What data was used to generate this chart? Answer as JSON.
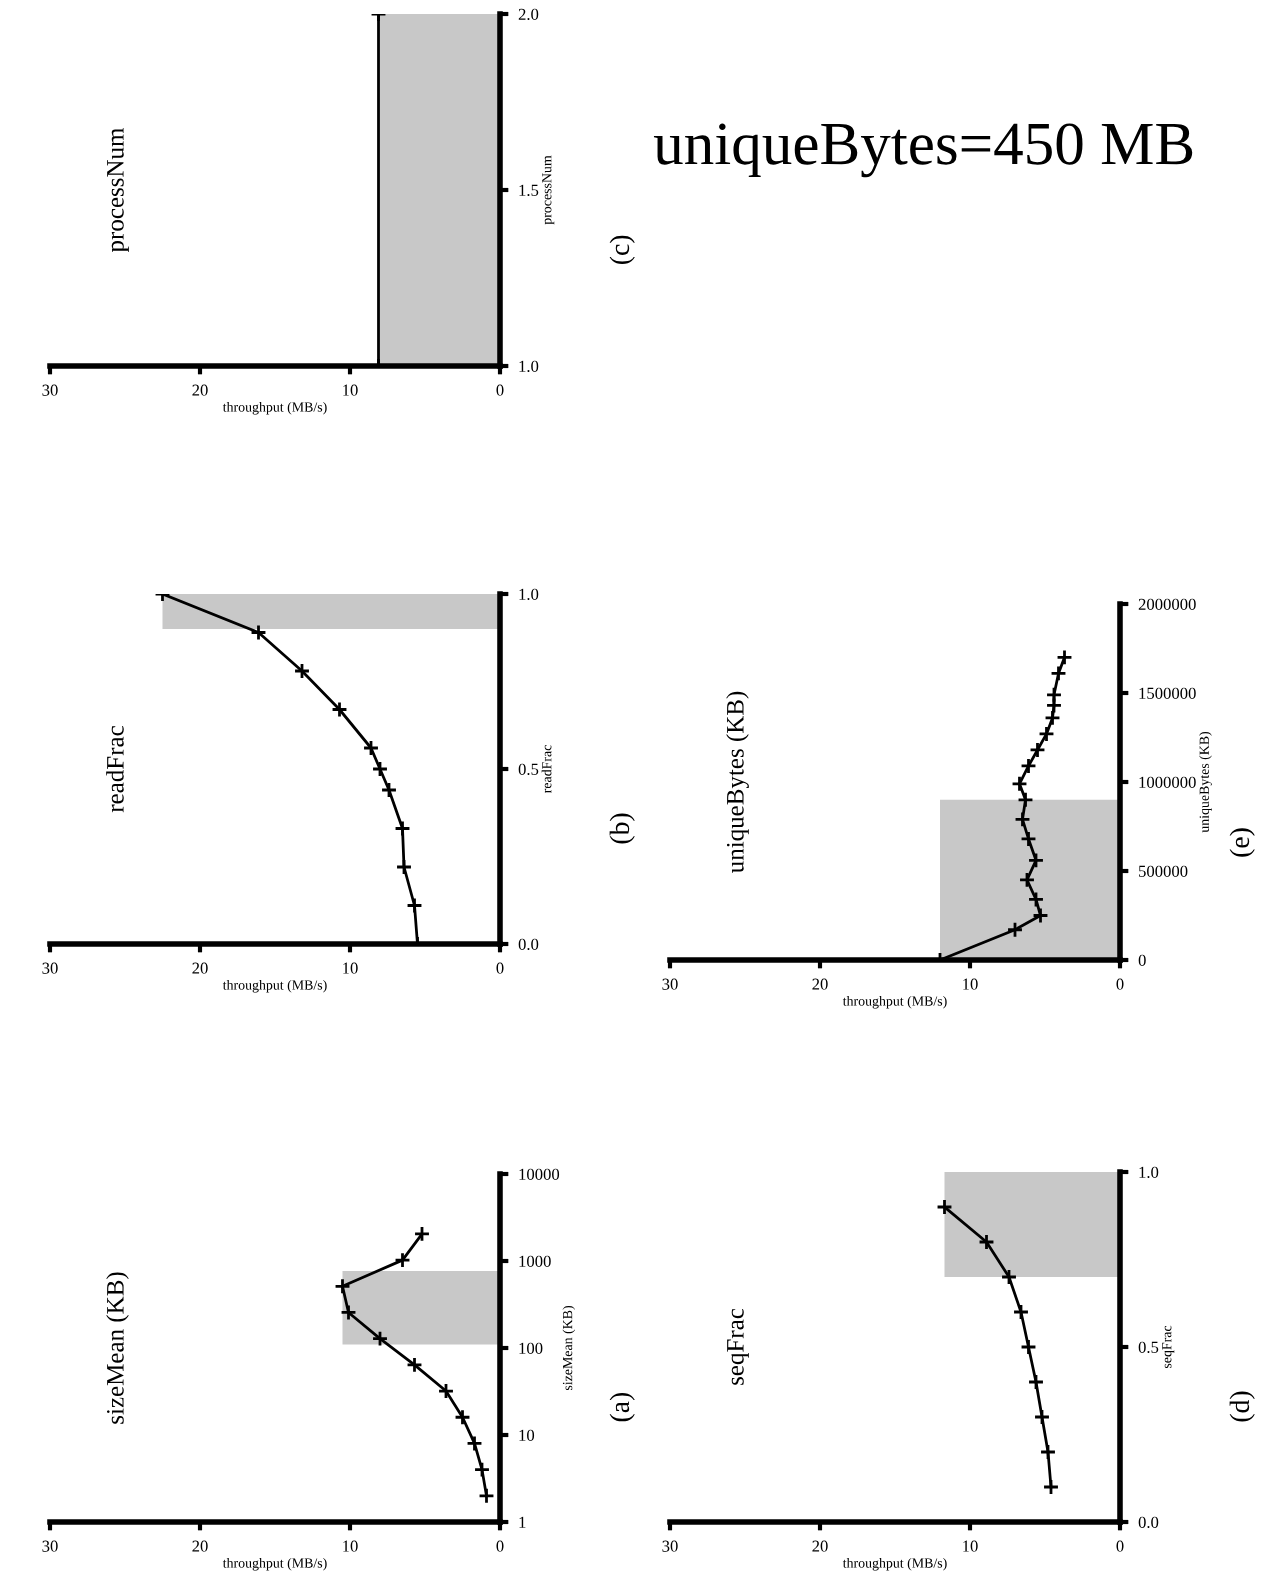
{
  "chart_data": [
    {
      "type": "line",
      "title": "sizeMean (KB)",
      "ylabel": "sizeMean (KB)",
      "xlabel": "throughput (MB/s)",
      "log": "y",
      "marker": "cross",
      "x": [
        0.9,
        1.2,
        1.7,
        2.5,
        3.6,
        5.7,
        8.0,
        10.1,
        10.5,
        6.5,
        5.2
      ],
      "series": [
        {
          "color": "#000000",
          "values": [
            2,
            4,
            8,
            16,
            32,
            64,
            128,
            256,
            512,
            1024,
            2048
          ]
        }
      ],
      "ylim": [
        1,
        10000
      ],
      "yticks": [
        1,
        10,
        100,
        1000,
        10000
      ],
      "xlim": [
        30,
        0
      ],
      "xticks": [
        0,
        10,
        20,
        30
      ],
      "bands": [
        {
          "axis": "y",
          "from": 110,
          "to": 770,
          "color": "#c8c8c8"
        }
      ],
      "annotations": [
        "(a)"
      ]
    },
    {
      "type": "line",
      "title": "readFrac",
      "ylabel": "readFrac",
      "xlabel": "throughput (MB/s)",
      "marker": "cross",
      "x": [
        5.5,
        5.7,
        6.4,
        6.5,
        7.4,
        8.0,
        8.6,
        10.7,
        13.2,
        16.1,
        22.5
      ],
      "series": [
        {
          "color": "#000000",
          "values": [
            0,
            0.11,
            0.22,
            0.33,
            0.44,
            0.5,
            0.56,
            0.67,
            0.78,
            0.89,
            1.0
          ]
        }
      ],
      "ylim": [
        0,
        1
      ],
      "yticks": [
        {
          "value": 0,
          "label": "0.0"
        },
        {
          "value": 0.5,
          "label": "0.5"
        },
        {
          "value": 1,
          "label": "1.0"
        }
      ],
      "xlim": [
        30,
        0
      ],
      "xticks": [
        0,
        10,
        20,
        30
      ],
      "bands": [
        {
          "axis": "y",
          "from": 0.9,
          "to": 1.0,
          "color": "#c8c8c8"
        }
      ],
      "annotations": [
        "(b)"
      ]
    },
    {
      "type": "line",
      "title": "processNum",
      "ylabel": "processNum",
      "xlabel": "throughput (MB/s)",
      "marker": "cross",
      "x": [
        8.1,
        8.1
      ],
      "series": [
        {
          "color": "#000000",
          "values": [
            1,
            2
          ]
        }
      ],
      "ylim": [
        1,
        2
      ],
      "yticks": [
        {
          "value": 1,
          "label": "1.0"
        },
        {
          "value": 1.5,
          "label": "1.5"
        },
        {
          "value": 2,
          "label": "2.0"
        }
      ],
      "xlim": [
        30,
        0
      ],
      "xticks": [
        0,
        10,
        20,
        30
      ],
      "bands": [
        {
          "axis": "y",
          "from": 1.0,
          "to": 2.0,
          "color": "#c8c8c8"
        }
      ],
      "annotations": [
        "(c)",
        "uniqueBytes=450 MB"
      ]
    },
    {
      "type": "line",
      "title": "seqFrac",
      "ylabel": "seqFrac",
      "xlabel": "throughput (MB/s)",
      "marker": "cross",
      "x": [
        4.6,
        4.8,
        5.2,
        5.6,
        6.1,
        6.6,
        7.4,
        8.9,
        11.7
      ],
      "series": [
        {
          "color": "#000000",
          "values": [
            0.1,
            0.2,
            0.3,
            0.4,
            0.5,
            0.6,
            0.7,
            0.8,
            0.9
          ]
        }
      ],
      "ylim": [
        0,
        1
      ],
      "yticks": [
        {
          "value": 0,
          "label": "0.0"
        },
        {
          "value": 0.5,
          "label": "0.5"
        },
        {
          "value": 1,
          "label": "1.0"
        }
      ],
      "xlim": [
        30,
        0
      ],
      "xticks": [
        0,
        10,
        20,
        30
      ],
      "bands": [
        {
          "axis": "y",
          "from": 0.7,
          "to": 1.0,
          "color": "#c8c8c8"
        }
      ],
      "annotations": [
        "(d)"
      ]
    },
    {
      "type": "line",
      "title": "uniqueBytes (KB)",
      "ylabel": "uniqueBytes (KB)",
      "xlabel": "throughput (MB/s)",
      "marker": "cross",
      "x": [
        12.0,
        7.0,
        5.3,
        5.6,
        6.2,
        5.6,
        6.1,
        6.5,
        6.3,
        6.7,
        6.1,
        5.5,
        4.9,
        4.5,
        4.4,
        4.4,
        4.1,
        3.7
      ],
      "series": [
        {
          "color": "#000000",
          "values": [
            0,
            170000,
            250000,
            340000,
            450000,
            560000,
            680000,
            790000,
            900000,
            990000,
            1090000,
            1180000,
            1270000,
            1360000,
            1430000,
            1490000,
            1610000,
            1700000
          ]
        }
      ],
      "ylim": [
        0,
        2000000
      ],
      "yticks": [
        0,
        500000,
        1000000,
        1500000,
        2000000
      ],
      "xlim": [
        30,
        0
      ],
      "xticks": [
        0,
        10,
        20,
        30
      ],
      "bands": [
        {
          "axis": "y",
          "from": 0,
          "to": 900000,
          "color": "#c8c8c8"
        }
      ],
      "annotations": [
        "(e)"
      ]
    }
  ]
}
